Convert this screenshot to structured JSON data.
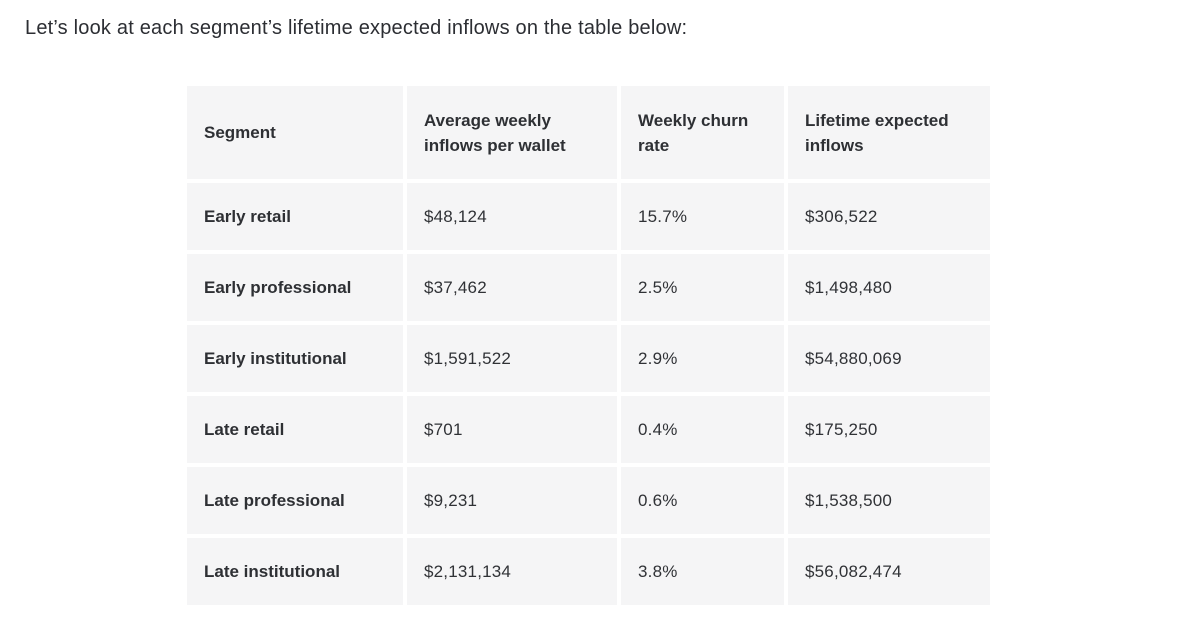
{
  "page": {
    "background": "#ffffff",
    "intro_text": "Let’s look at each segment’s lifetime expected inflows on the table below:"
  },
  "table": {
    "cell_background": "#f5f5f6",
    "text_color": "#303236",
    "columns": [
      "Segment",
      "Average weekly inflows per wallet",
      "Weekly churn rate",
      "Lifetime expected inflows"
    ],
    "rows": [
      [
        "Early retail",
        "$48,124",
        "15.7%",
        "$306,522"
      ],
      [
        "Early professional",
        "$37,462",
        "2.5%",
        "$1,498,480"
      ],
      [
        "Early institutional",
        "$1,591,522",
        "2.9%",
        "$54,880,069"
      ],
      [
        "Late retail",
        "$701",
        "0.4%",
        "$175,250"
      ],
      [
        "Late professional",
        "$9,231",
        "0.6%",
        "$1,538,500"
      ],
      [
        "Late institutional",
        "$2,131,134",
        "3.8%",
        "$56,082,474"
      ]
    ]
  }
}
